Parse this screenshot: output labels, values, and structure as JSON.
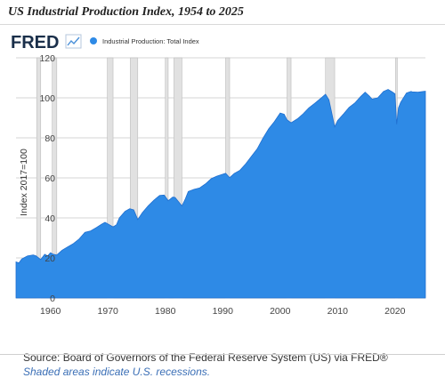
{
  "headline": "US Industrial Production Index, 1954 to 2025",
  "source": "Source: Board of Governors of the Federal Reserve System (US) via FRED®",
  "note": "Shaded areas indicate U.S. recessions.",
  "brand": {
    "logo_text": "FRED",
    "icon": "line-chart-icon"
  },
  "colors": {
    "area": "#2e8ae6",
    "area_stroke": "#1f6fd0",
    "recession": "#e1e1e1",
    "recession_edge": "#bdbdbd",
    "grid": "#d6d6d6",
    "brand": "#1a2f4a"
  },
  "chart_data": {
    "type": "area",
    "title": "",
    "xlabel": "",
    "ylabel": "Index 2017=100",
    "legend": {
      "entries": [
        "Industrial Production: Total Index"
      ],
      "placement": "top-left"
    },
    "xlim": [
      1954.0,
      2025.3
    ],
    "ylim": [
      0,
      120
    ],
    "x_ticks": [
      1960,
      1970,
      1980,
      1990,
      2000,
      2010,
      2020
    ],
    "y_ticks": [
      0,
      20,
      40,
      60,
      80,
      100,
      120
    ],
    "grid": true,
    "recessions": [
      [
        1957.6,
        1958.3
      ],
      [
        1960.3,
        1961.1
      ],
      [
        1969.9,
        1970.9
      ],
      [
        1973.9,
        1975.2
      ],
      [
        1980.0,
        1980.5
      ],
      [
        1981.5,
        1982.9
      ],
      [
        1990.5,
        1991.2
      ],
      [
        2001.2,
        2001.9
      ],
      [
        2007.9,
        2009.5
      ],
      [
        2020.1,
        2020.3
      ]
    ],
    "series": [
      {
        "name": "Industrial Production: Total Index",
        "x": [
          1954.0,
          1954.5,
          1955.0,
          1956.0,
          1957.0,
          1957.5,
          1958.3,
          1959.0,
          1959.5,
          1960.0,
          1960.5,
          1961.1,
          1962.0,
          1963.0,
          1964.0,
          1965.0,
          1966.0,
          1967.0,
          1968.0,
          1969.0,
          1969.5,
          1970.9,
          1971.5,
          1972.0,
          1973.0,
          1973.8,
          1974.5,
          1975.2,
          1976.0,
          1977.0,
          1978.0,
          1979.0,
          1979.8,
          1980.5,
          1981.3,
          1981.7,
          1982.9,
          1983.5,
          1984.0,
          1985.0,
          1986.0,
          1987.0,
          1988.0,
          1989.0,
          1990.5,
          1991.2,
          1992.0,
          1993.0,
          1994.0,
          1995.0,
          1996.0,
          1997.0,
          1998.0,
          1999.0,
          2000.0,
          2000.7,
          2001.2,
          2001.9,
          2003.0,
          2004.0,
          2005.0,
          2006.0,
          2007.0,
          2007.9,
          2008.5,
          2009.5,
          2010.0,
          2011.0,
          2012.0,
          2013.0,
          2014.0,
          2014.8,
          2015.5,
          2016.0,
          2017.0,
          2018.0,
          2018.8,
          2019.5,
          2020.0,
          2020.3,
          2020.6,
          2021.0,
          2022.0,
          2022.8,
          2023.0,
          2024.0,
          2025.0,
          2025.3
        ],
        "y": [
          18.0,
          17.5,
          19.5,
          21.0,
          21.5,
          21.0,
          19.2,
          21.8,
          21.0,
          22.6,
          21.8,
          21.5,
          23.8,
          25.5,
          27.2,
          29.5,
          32.8,
          33.5,
          35.2,
          37.0,
          37.8,
          35.5,
          36.6,
          40.0,
          43.3,
          44.6,
          44.0,
          39.2,
          42.6,
          46.0,
          48.8,
          51.2,
          51.4,
          48.6,
          50.4,
          50.2,
          46.0,
          49.6,
          53.2,
          54.3,
          55.0,
          57.0,
          59.6,
          60.9,
          62.3,
          60.1,
          62.2,
          63.8,
          67.0,
          70.8,
          74.5,
          79.8,
          84.5,
          88.1,
          92.4,
          91.8,
          89.0,
          87.5,
          89.5,
          92.0,
          95.0,
          97.2,
          99.6,
          101.8,
          99.0,
          85.5,
          88.6,
          91.8,
          95.2,
          97.4,
          100.6,
          102.8,
          101.0,
          99.4,
          100.0,
          103.2,
          104.2,
          103.0,
          102.0,
          86.8,
          95.0,
          97.8,
          102.4,
          103.2,
          103.0,
          102.8,
          103.2,
          103.3
        ]
      }
    ]
  }
}
